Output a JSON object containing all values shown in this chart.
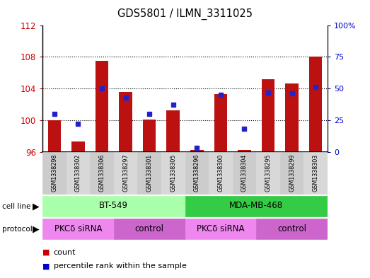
{
  "title": "GDS5801 / ILMN_3311025",
  "samples": [
    "GSM1338298",
    "GSM1338302",
    "GSM1338306",
    "GSM1338297",
    "GSM1338301",
    "GSM1338305",
    "GSM1338296",
    "GSM1338300",
    "GSM1338304",
    "GSM1338295",
    "GSM1338299",
    "GSM1338303"
  ],
  "counts": [
    100.0,
    97.3,
    107.5,
    103.6,
    100.1,
    101.2,
    96.2,
    103.3,
    96.2,
    105.2,
    104.6,
    108.0
  ],
  "percentiles": [
    30,
    22,
    50,
    43,
    30,
    37,
    3,
    45,
    18,
    47,
    46,
    51
  ],
  "ylim_left": [
    96,
    112
  ],
  "ylim_right": [
    0,
    100
  ],
  "yticks_left": [
    96,
    100,
    104,
    108,
    112
  ],
  "yticks_right": [
    0,
    25,
    50,
    75,
    100
  ],
  "ytick_labels_right": [
    "0",
    "25",
    "50",
    "75",
    "100%"
  ],
  "bar_color": "#bb1111",
  "marker_color": "#2222cc",
  "bar_bottom": 96,
  "cell_line_groups": [
    {
      "label": "BT-549",
      "start": 0,
      "end": 5,
      "color": "#aaffaa"
    },
    {
      "label": "MDA-MB-468",
      "start": 6,
      "end": 11,
      "color": "#33cc44"
    }
  ],
  "protocol_groups": [
    {
      "label": "PKCδ siRNA",
      "start": 0,
      "end": 2,
      "color": "#ee88ee"
    },
    {
      "label": "control",
      "start": 3,
      "end": 5,
      "color": "#cc66cc"
    },
    {
      "label": "PKCδ siRNA",
      "start": 6,
      "end": 8,
      "color": "#ee88ee"
    },
    {
      "label": "control",
      "start": 9,
      "end": 11,
      "color": "#cc66cc"
    }
  ],
  "left_tick_color": "#cc0000",
  "right_tick_color": "#0000cc",
  "sample_area_color_even": "#cccccc",
  "sample_area_color_odd": "#d8d8d8",
  "legend_count_color": "#cc0000",
  "legend_marker_color": "#0000cc",
  "gridline_ticks": [
    100,
    104,
    108
  ]
}
